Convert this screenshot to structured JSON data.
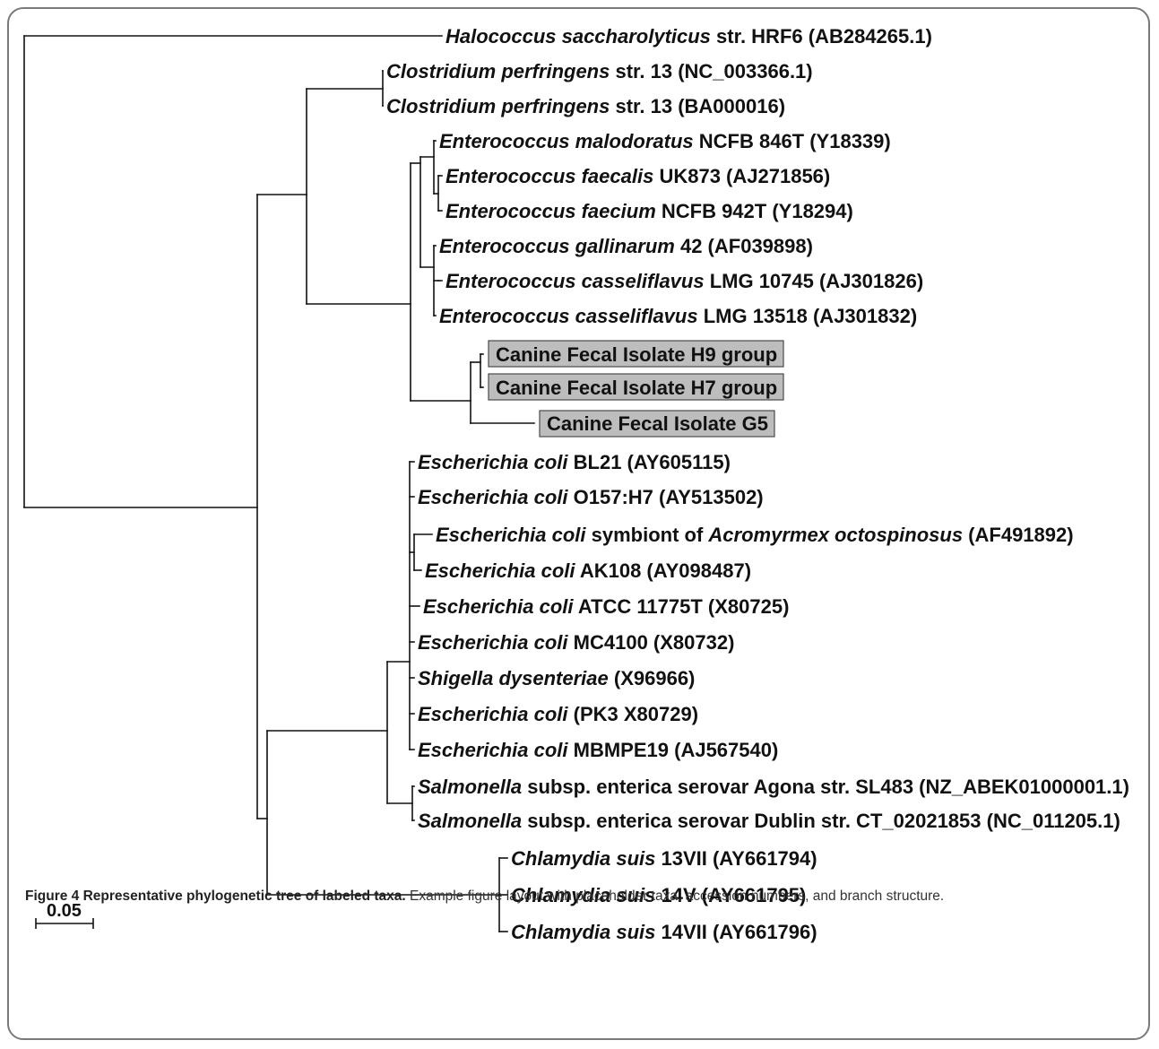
{
  "figure": {
    "title": "Figure 4",
    "caption_title": "Representative phylogenetic tree of labeled taxa.",
    "caption_text": "Example figure layout with placeholder taxa, accession numbers, and branch structure.",
    "scale_label": "0.05"
  },
  "tree": {
    "leaves": [
      {
        "key": "taxon-1",
        "segments": [
          {
            "text": "Halococcus saccharolyticus",
            "italic": true
          },
          {
            "text": " str. HRF6 (AB284265.1)",
            "italic": false
          }
        ],
        "boxed": false
      },
      {
        "key": "taxon-2",
        "segments": [
          {
            "text": "Clostridium perfringens",
            "italic": true
          },
          {
            "text": " str. 13 (NC_003366.1)",
            "italic": false
          }
        ],
        "boxed": false
      },
      {
        "key": "taxon-3",
        "segments": [
          {
            "text": "Clostridium perfringens",
            "italic": true
          },
          {
            "text": " str. 13 (BA000016)",
            "italic": false
          }
        ],
        "boxed": false
      },
      {
        "key": "taxon-4",
        "segments": [
          {
            "text": "Enterococcus malodoratus",
            "italic": true
          },
          {
            "text": " NCFB 846T (Y18339)",
            "italic": false
          }
        ],
        "boxed": false
      },
      {
        "key": "taxon-5",
        "segments": [
          {
            "text": "Enterococcus faecalis",
            "italic": true
          },
          {
            "text": " UK873 (AJ271856)",
            "italic": false
          }
        ],
        "boxed": false
      },
      {
        "key": "taxon-6",
        "segments": [
          {
            "text": "Enterococcus faecium",
            "italic": true
          },
          {
            "text": " NCFB 942T (Y18294)",
            "italic": false
          }
        ],
        "boxed": false
      },
      {
        "key": "taxon-7",
        "segments": [
          {
            "text": "Enterococcus gallinarum",
            "italic": true
          },
          {
            "text": " 42 (AF039898)",
            "italic": false
          }
        ],
        "boxed": false
      },
      {
        "key": "taxon-8",
        "segments": [
          {
            "text": "Enterococcus casseliflavus",
            "italic": true
          },
          {
            "text": " LMG 10745 (AJ301826)",
            "italic": false
          }
        ],
        "boxed": false
      },
      {
        "key": "taxon-9",
        "segments": [
          {
            "text": "Enterococcus casseliflavus",
            "italic": true
          },
          {
            "text": " LMG 13518 (AJ301832)",
            "italic": false
          }
        ],
        "boxed": false
      },
      {
        "key": "taxon-10",
        "segments": [
          {
            "text": "Canine Fecal Isolate H9 group",
            "italic": false
          }
        ],
        "boxed": true
      },
      {
        "key": "taxon-11",
        "segments": [
          {
            "text": "Canine Fecal Isolate H7 group",
            "italic": false
          }
        ],
        "boxed": true
      },
      {
        "key": "taxon-12",
        "segments": [
          {
            "text": "Canine Fecal Isolate G5",
            "italic": false
          }
        ],
        "boxed": true
      },
      {
        "key": "taxon-13",
        "segments": [
          {
            "text": "Escherichia coli",
            "italic": true
          },
          {
            "text": " BL21 (AY605115)",
            "italic": false
          }
        ],
        "boxed": false
      },
      {
        "key": "taxon-14",
        "segments": [
          {
            "text": "Escherichia coli",
            "italic": true
          },
          {
            "text": " O157:H7 (AY513502)",
            "italic": false
          }
        ],
        "boxed": false
      },
      {
        "key": "taxon-15",
        "segments": [
          {
            "text": "Escherichia coli",
            "italic": true
          },
          {
            "text": " symbiont of ",
            "italic": false
          },
          {
            "text": "Acromyrmex octospinosus",
            "italic": true
          },
          {
            "text": " (AF491892)",
            "italic": false
          }
        ],
        "boxed": false
      },
      {
        "key": "taxon-16",
        "segments": [
          {
            "text": "Escherichia coli",
            "italic": true
          },
          {
            "text": " AK108 (AY098487)",
            "italic": false
          }
        ],
        "boxed": false
      },
      {
        "key": "taxon-17",
        "segments": [
          {
            "text": "Escherichia coli",
            "italic": true
          },
          {
            "text": " ATCC 11775T (X80725)",
            "italic": false
          }
        ],
        "boxed": false
      },
      {
        "key": "taxon-18",
        "segments": [
          {
            "text": "Escherichia coli",
            "italic": true
          },
          {
            "text": " MC4100 (X80732)",
            "italic": false
          }
        ],
        "boxed": false
      },
      {
        "key": "taxon-19",
        "segments": [
          {
            "text": "Shigella dysenteriae",
            "italic": true
          },
          {
            "text": " (X96966)",
            "italic": false
          }
        ],
        "boxed": false
      },
      {
        "key": "taxon-20",
        "segments": [
          {
            "text": "Escherichia coli",
            "italic": true
          },
          {
            "text": " (PK3 X80729)",
            "italic": false
          }
        ],
        "boxed": false
      },
      {
        "key": "taxon-21",
        "segments": [
          {
            "text": "Escherichia coli",
            "italic": true
          },
          {
            "text": " MBMPE19 (AJ567540)",
            "italic": false
          }
        ],
        "boxed": false
      },
      {
        "key": "taxon-22",
        "segments": [
          {
            "text": "Salmonella",
            "italic": true
          },
          {
            "text": " subsp. enterica serovar Agona str. SL483 (NZ_ABEK01000001.1)",
            "italic": false
          }
        ],
        "boxed": false
      },
      {
        "key": "taxon-23",
        "segments": [
          {
            "text": "Salmonella",
            "italic": true
          },
          {
            "text": " subsp. enterica serovar Dublin str. CT_02021853 (NC_011205.1)",
            "italic": false
          }
        ],
        "boxed": false
      },
      {
        "key": "taxon-24",
        "segments": [
          {
            "text": "Chlamydia suis",
            "italic": true
          },
          {
            "text": " 13VII (AY661794)",
            "italic": false
          }
        ],
        "boxed": false
      },
      {
        "key": "taxon-25",
        "segments": [
          {
            "text": "Chlamydia suis",
            "italic": true
          },
          {
            "text": " 14V (AY661795)",
            "italic": false
          }
        ],
        "boxed": false
      },
      {
        "key": "taxon-26",
        "segments": [
          {
            "text": "Chlamydia suis",
            "italic": true
          },
          {
            "text": " 14VII (AY661796)",
            "italic": false
          }
        ],
        "boxed": false
      }
    ]
  }
}
